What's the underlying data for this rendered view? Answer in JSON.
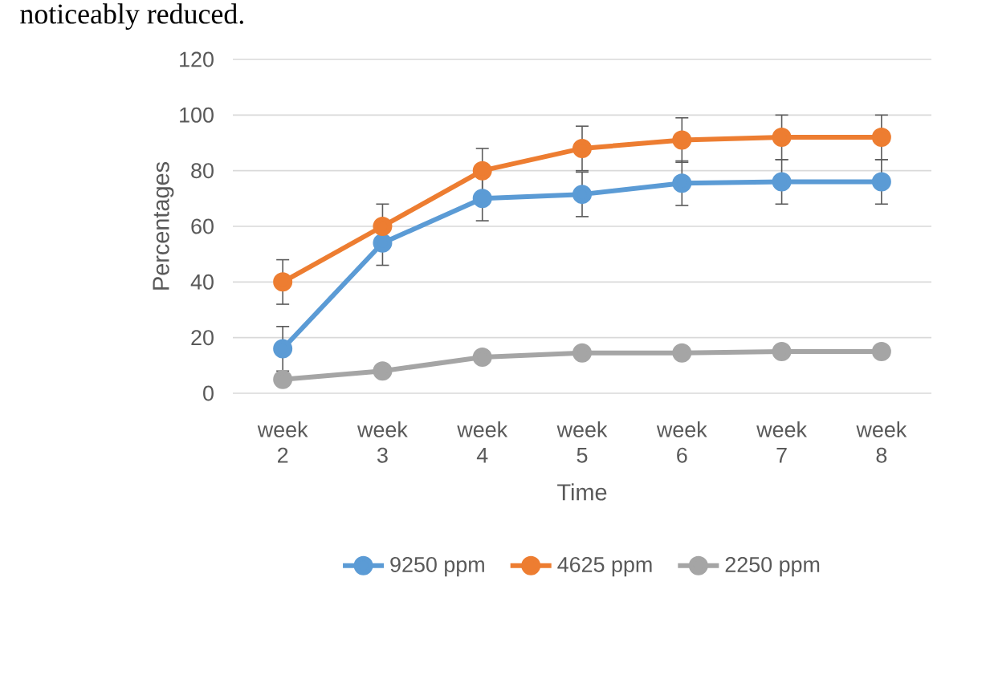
{
  "chart_data": {
    "type": "line",
    "annotations": [
      "noticeably reduced."
    ],
    "xlabel": "Time",
    "ylabel": "Percentages",
    "categories": [
      "week 2",
      "week 3",
      "week 4",
      "week 5",
      "week 6",
      "week 7",
      "week 8"
    ],
    "series": [
      {
        "name": "9250 ppm",
        "color": "#5b9bd5",
        "values": [
          16,
          54,
          70,
          71.5,
          75.5,
          76,
          76
        ],
        "errors": [
          8,
          8,
          8,
          8,
          8,
          8,
          8
        ]
      },
      {
        "name": "4625 ppm",
        "color": "#ed7d31",
        "values": [
          40,
          60,
          80,
          88,
          91,
          92,
          92
        ],
        "errors": [
          8,
          8,
          8,
          8,
          8,
          8,
          8
        ]
      },
      {
        "name": "2250 ppm",
        "color": "#a5a5a5",
        "values": [
          5,
          8,
          13,
          14.5,
          14.5,
          15,
          15
        ]
      }
    ],
    "ylim": [
      0,
      120
    ],
    "yticks": [
      0,
      20,
      40,
      60,
      80,
      100,
      120
    ],
    "grid": "y",
    "legend": "bottom",
    "marker": "circle",
    "line_style": "solid"
  }
}
